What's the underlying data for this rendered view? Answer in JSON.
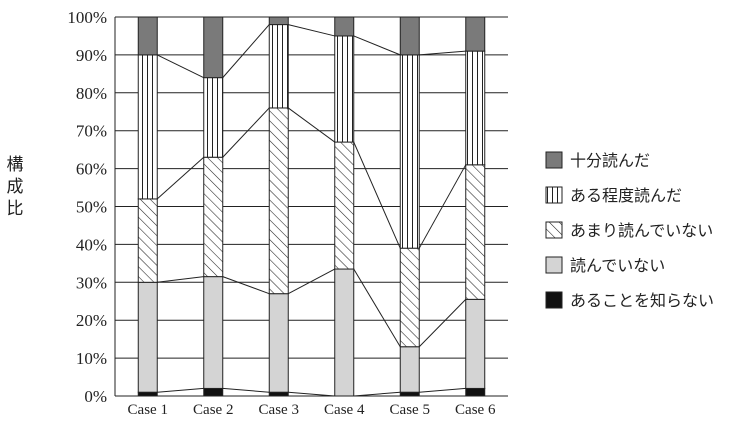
{
  "chart_data": {
    "type": "bar",
    "stacked": true,
    "percent": true,
    "categories": [
      "Case 1",
      "Case 2",
      "Case 3",
      "Case 4",
      "Case 5",
      "Case 6"
    ],
    "ylabel": "構成比",
    "ylim": [
      0,
      100
    ],
    "yticks": [
      "0%",
      "10%",
      "20%",
      "30%",
      "40%",
      "50%",
      "60%",
      "70%",
      "80%",
      "90%",
      "100%"
    ],
    "grid": true,
    "legend_position": "right",
    "connector_lines": true,
    "series": [
      {
        "name": "あることを知らない",
        "pattern": "solid-black",
        "values": [
          1,
          2,
          1,
          0,
          1,
          2
        ]
      },
      {
        "name": "読んでいない",
        "pattern": "light-gray",
        "values": [
          29,
          29.5,
          26,
          33.5,
          12,
          23.5
        ]
      },
      {
        "name": "あまり読んでいない",
        "pattern": "diagonal-hatch",
        "values": [
          22,
          31.5,
          49,
          33.5,
          26,
          35.5
        ]
      },
      {
        "name": "ある程度読んだ",
        "pattern": "vertical-lines",
        "values": [
          38,
          21,
          22,
          28,
          51,
          30
        ]
      },
      {
        "name": "十分読んだ",
        "pattern": "dark-gray",
        "values": [
          10,
          16,
          2,
          5,
          10,
          9
        ]
      }
    ],
    "legend_order": [
      "十分読んだ",
      "ある程度読んだ",
      "あまり読んでいない",
      "読んでいない",
      "あることを知らない"
    ]
  }
}
